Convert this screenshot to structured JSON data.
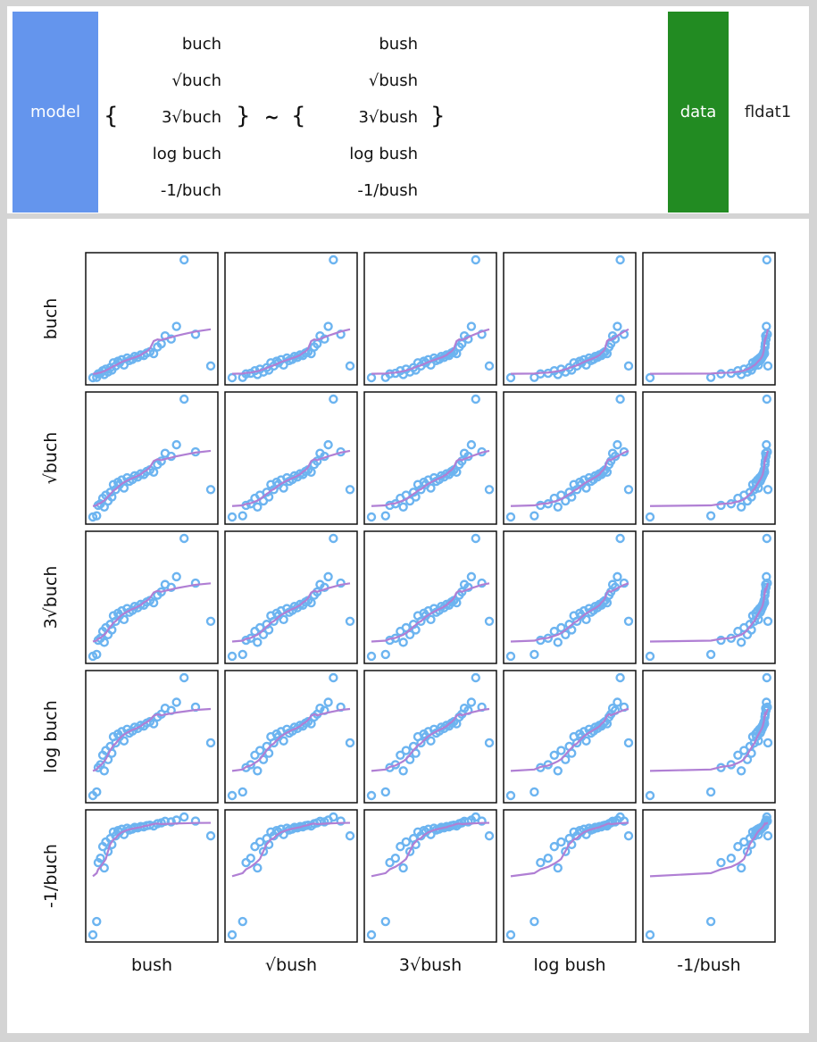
{
  "header": {
    "model_label": "model",
    "data_label": "data",
    "data_name": "fldat1",
    "open_brace": "{",
    "close_brace": "}",
    "tilde": "~",
    "lhs_transforms": [
      "buch",
      "√buch",
      "3√buch",
      "log buch",
      "-1/buch"
    ],
    "rhs_transforms": [
      "bush",
      "√bush",
      "3√bush",
      "log bush",
      "-1/bush"
    ]
  },
  "colors": {
    "model_tag": "#6495ed",
    "data_tag": "#228b22",
    "points": "#6cb4f0",
    "smooth_line": "#b07fd4"
  },
  "chart_data": {
    "type": "scatter",
    "layout": "scatterplot-matrix",
    "rows": [
      "buch",
      "√buch",
      "3√buch",
      "log buch",
      "-1/buch"
    ],
    "cols": [
      "bush",
      "√bush",
      "3√bush",
      "log bush",
      "-1/bush"
    ],
    "x": [
      0.5,
      1.0,
      1.2,
      1.5,
      1.8,
      2.0,
      2.2,
      2.5,
      2.8,
      3.0,
      3.2,
      3.5,
      3.8,
      4.0,
      4.3,
      4.6,
      5.0,
      5.3,
      5.7,
      6.0,
      6.4,
      6.8,
      7.2,
      7.6,
      8.0,
      8.5,
      9.0,
      9.5,
      10.0,
      10.8,
      11.5,
      12.5,
      14.0,
      16.0
    ],
    "y": [
      0.8,
      0.9,
      2.0,
      2.2,
      3.0,
      1.8,
      3.5,
      2.6,
      4.0,
      3.2,
      5.5,
      4.5,
      6.0,
      5.5,
      6.5,
      4.8,
      7.0,
      6.2,
      6.6,
      7.5,
      7.2,
      8.0,
      7.8,
      8.6,
      9.0,
      8.4,
      10.5,
      11.5,
      14.0,
      13.0,
      17.0,
      38.0,
      14.5,
      4.5
    ],
    "smooth_line": true,
    "point_marker": "open-circle"
  }
}
